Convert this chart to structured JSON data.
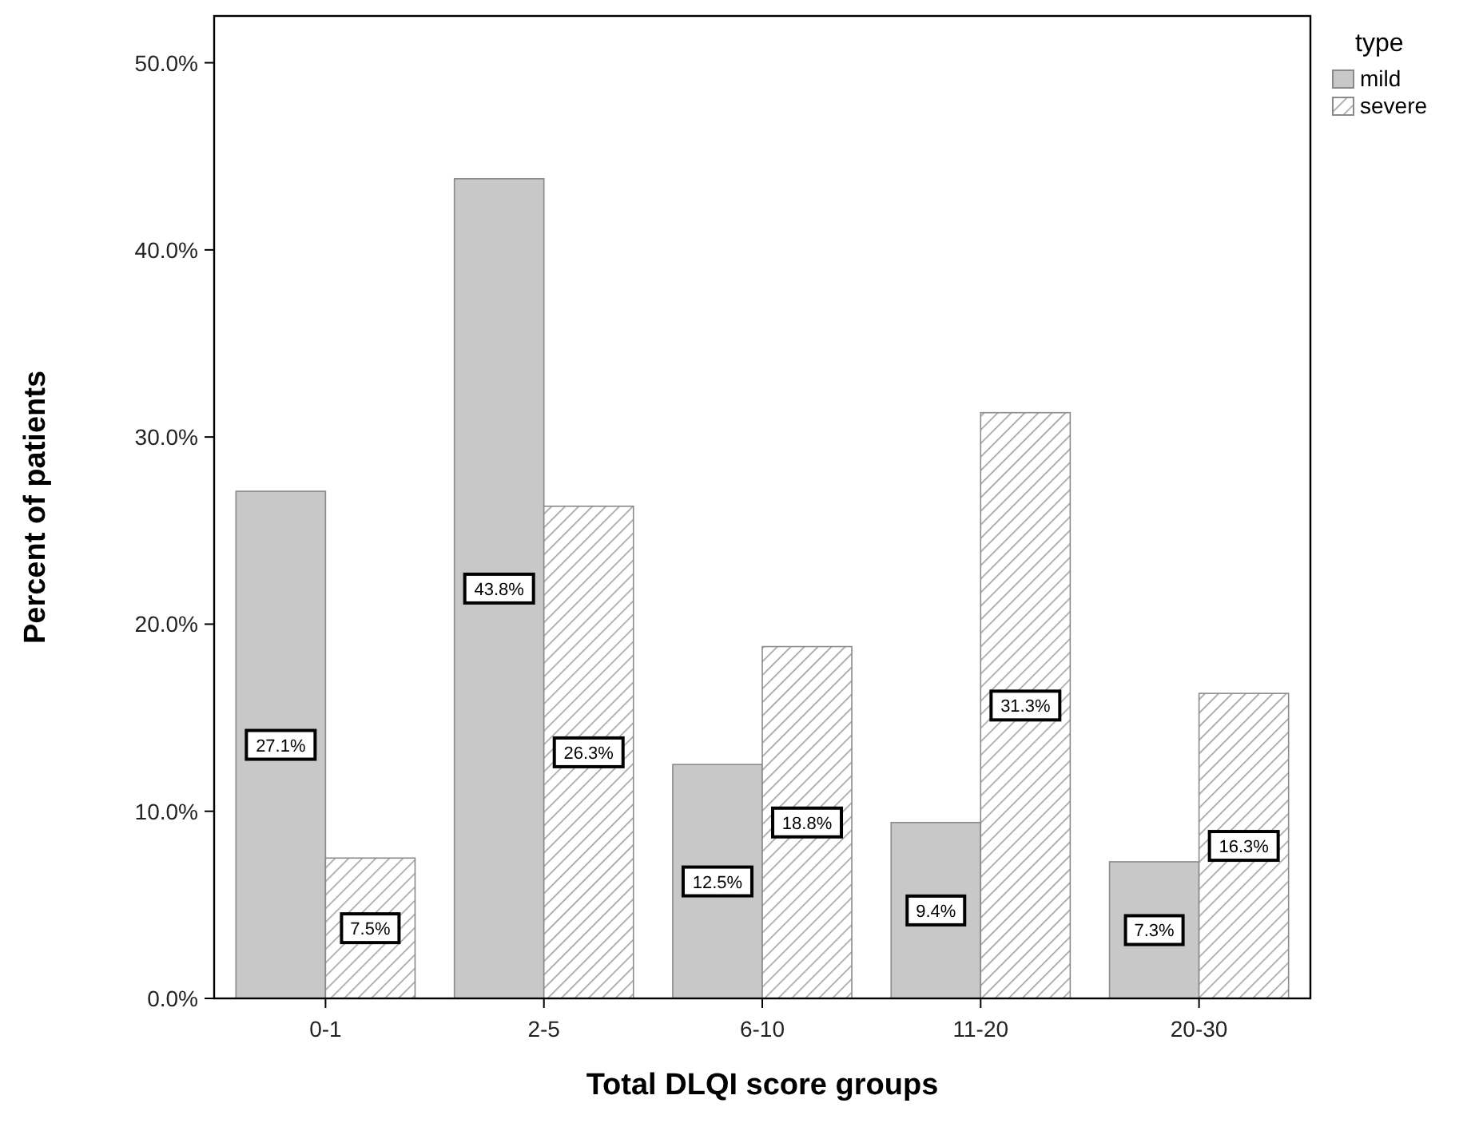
{
  "chart_data": {
    "type": "bar",
    "xlabel": "Total DLQI score groups",
    "ylabel": "Percent of patients",
    "legend_title": "type",
    "categories": [
      "0-1",
      "2-5",
      "6-10",
      "11-20",
      "20-30"
    ],
    "series": [
      {
        "name": "mild",
        "color": "#c8c8c8",
        "values": [
          27.1,
          43.8,
          12.5,
          9.4,
          7.3
        ],
        "value_labels": [
          "27.1%",
          "43.8%",
          "12.5%",
          "9.4%",
          "7.3%"
        ]
      },
      {
        "name": "severe",
        "color": "#9a9a9a",
        "values": [
          7.5,
          26.3,
          18.8,
          31.3,
          16.3
        ],
        "value_labels": [
          "7.5%",
          "26.3%",
          "18.8%",
          "31.3%",
          "16.3%"
        ]
      }
    ],
    "ylim": [
      0,
      52.5
    ],
    "yticks": [
      {
        "value": 0,
        "label": "0.0%"
      },
      {
        "value": 10,
        "label": "10.0%"
      },
      {
        "value": 20,
        "label": "20.0%"
      },
      {
        "value": 30,
        "label": "30.0%"
      },
      {
        "value": 40,
        "label": "40.0%"
      },
      {
        "value": 50,
        "label": "50.0%"
      }
    ],
    "grid": false,
    "legend": "top right"
  }
}
